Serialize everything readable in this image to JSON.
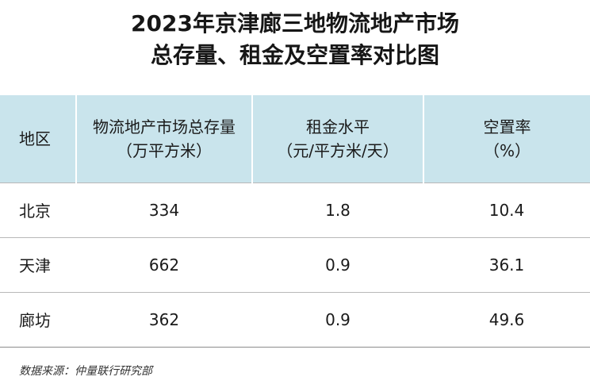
{
  "chart_data": {
    "type": "table",
    "title": "2023年京津廊三地物流地产市场总存量、租金及空置率对比图",
    "columns": [
      {
        "line1": "地区",
        "line2": ""
      },
      {
        "line1": "物流地产市场总存量",
        "line2": "（万平方米）"
      },
      {
        "line1": "租金水平",
        "line2": "（元/平方米/天）"
      },
      {
        "line1": "空置率",
        "line2": "（%）"
      }
    ],
    "rows": [
      {
        "region": "北京",
        "stock": "334",
        "rent": "1.8",
        "vacancy": "10.4"
      },
      {
        "region": "天津",
        "stock": "662",
        "rent": "0.9",
        "vacancy": "36.1"
      },
      {
        "region": "廊坊",
        "stock": "362",
        "rent": "0.9",
        "vacancy": "49.6"
      }
    ],
    "title_lines": [
      "2023年京津廊三地物流地产市场",
      "总存量、租金及空置率对比图"
    ]
  },
  "source": "数据来源：仲量联行研究部",
  "colors": {
    "header_bg": "#c9e4ec",
    "divider": "#b8b8b8"
  }
}
